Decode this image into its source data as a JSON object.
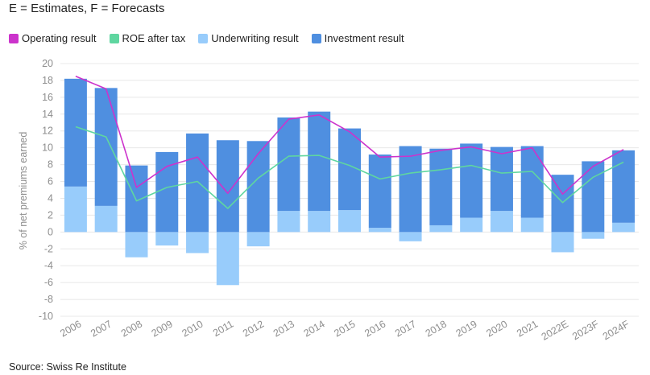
{
  "header": {
    "subtitle": "E = Estimates, F = Forecasts"
  },
  "footer": {
    "source": "Source: Swiss Re Institute"
  },
  "colors": {
    "investment": "#4f8fe0",
    "underwriting": "#98ccfb",
    "operating": "#cc33cc",
    "roe": "#5fd6a0",
    "grid": "#e8e8e8",
    "axis_text": "#8e8e8e"
  },
  "chart_data": {
    "type": "bar",
    "title": "",
    "xlabel": "",
    "ylabel": "% of net premiums earned",
    "ylim": [
      -10,
      20
    ],
    "yticks": [
      -10,
      -8,
      -6,
      -4,
      -2,
      0,
      2,
      4,
      6,
      8,
      10,
      12,
      14,
      16,
      18,
      20
    ],
    "grid": true,
    "legend_placement": "top-left",
    "categories": [
      "2006",
      "2007",
      "2008",
      "2009",
      "2010",
      "2011",
      "2012",
      "2013",
      "2014",
      "2015",
      "2016",
      "2017",
      "2018",
      "2019",
      "2020",
      "2021",
      "2022E",
      "2023F",
      "2024F"
    ],
    "series": [
      {
        "name": "Operating result",
        "kind": "line",
        "color": "#cc33cc",
        "values": [
          18.5,
          17.0,
          5.3,
          7.8,
          8.9,
          4.6,
          9.3,
          13.4,
          13.9,
          11.9,
          8.9,
          9.0,
          9.7,
          10.1,
          9.3,
          10.0,
          4.5,
          7.8,
          9.8
        ]
      },
      {
        "name": "ROE after tax",
        "kind": "line",
        "color": "#5fd6a0",
        "values": [
          12.5,
          11.3,
          3.7,
          5.3,
          6.0,
          2.8,
          6.4,
          9.0,
          9.1,
          7.9,
          6.3,
          7.0,
          7.4,
          7.9,
          7.0,
          7.2,
          3.5,
          6.5,
          8.3
        ]
      },
      {
        "name": "Underwriting result",
        "kind": "bar",
        "color": "#98ccfb",
        "values": [
          5.4,
          3.1,
          -3.0,
          -1.6,
          -2.5,
          -6.3,
          -1.7,
          2.5,
          2.5,
          2.6,
          0.5,
          -1.1,
          0.8,
          1.7,
          2.5,
          1.7,
          -2.4,
          -0.8,
          1.1
        ]
      },
      {
        "name": "Investment result",
        "kind": "bar",
        "color": "#4f8fe0",
        "values": [
          12.8,
          14.0,
          7.9,
          9.5,
          11.7,
          10.9,
          10.8,
          11.1,
          11.8,
          9.7,
          8.7,
          10.2,
          9.1,
          8.8,
          7.6,
          8.5,
          6.8,
          8.4,
          8.6
        ]
      }
    ]
  }
}
